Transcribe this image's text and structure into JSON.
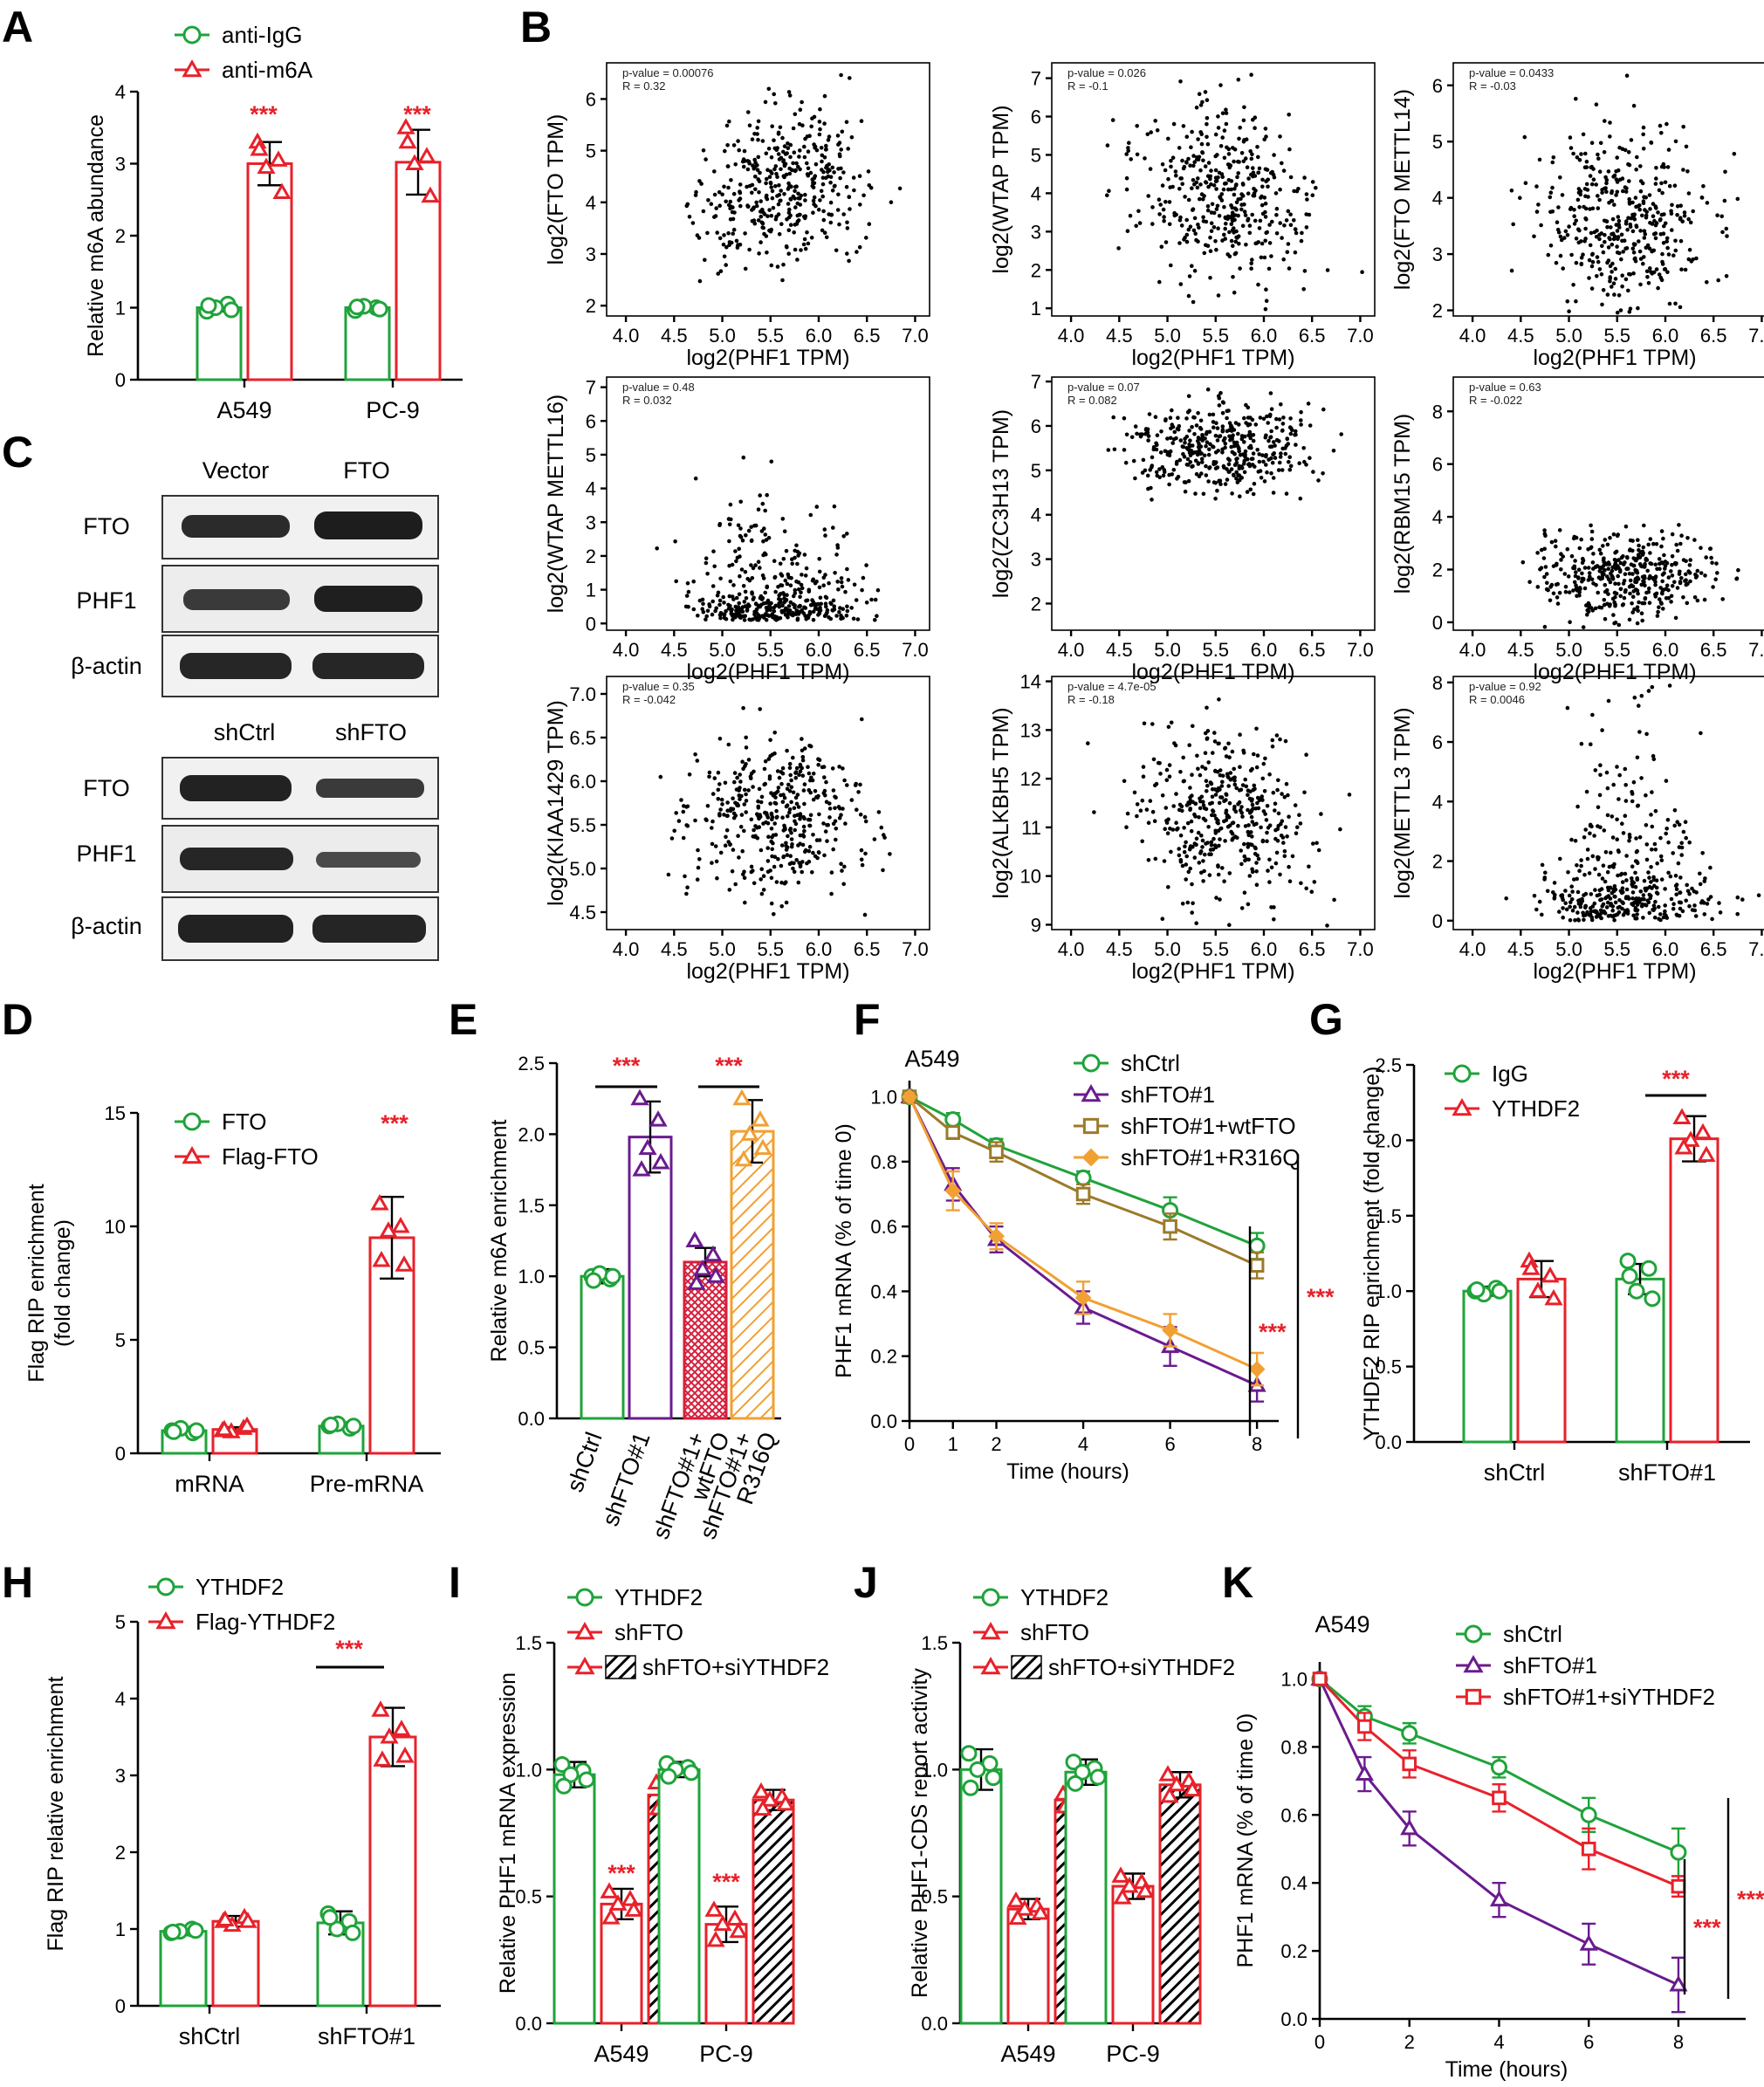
{
  "colors": {
    "green": "#1fa33a",
    "red": "#e8212a",
    "purple": "#6a1b8e",
    "olive": "#9b7a2a",
    "orange": "#f1a033",
    "black": "#000000"
  },
  "panels": {
    "A": {
      "letter": "A"
    },
    "B": {
      "letter": "B"
    },
    "C": {
      "letter": "C"
    },
    "D": {
      "letter": "D"
    },
    "E": {
      "letter": "E"
    },
    "F": {
      "letter": "F"
    },
    "G": {
      "letter": "G"
    },
    "H": {
      "letter": "H"
    },
    "I": {
      "letter": "I"
    },
    "J": {
      "letter": "J"
    },
    "K": {
      "letter": "K"
    }
  },
  "blots": {
    "top": {
      "columns": [
        "Vector",
        "FTO"
      ],
      "rows": [
        "FTO",
        "PHF1",
        "β-actin"
      ]
    },
    "bottom": {
      "columns": [
        "shCtrl",
        "shFTO"
      ],
      "rows": [
        "FTO",
        "PHF1",
        "β-actin"
      ]
    }
  },
  "chart_data": [
    {
      "id": "A",
      "type": "bar",
      "categories": [
        "A549",
        "PC-9"
      ],
      "series": [
        {
          "name": "anti-IgG",
          "color": "green",
          "marker": "circle",
          "values": [
            1.0,
            1.0
          ],
          "error": [
            0.05,
            0.05
          ],
          "points": [
            [
              0.95,
              1.05,
              1.0,
              0.97,
              1.03
            ],
            [
              0.96,
              1.0,
              1.02,
              0.98,
              1.01
            ]
          ]
        },
        {
          "name": "anti-m6A",
          "color": "red",
          "marker": "triangle",
          "values": [
            3.0,
            3.02
          ],
          "error": [
            0.3,
            0.45
          ],
          "points": [
            [
              3.3,
              3.05,
              2.95,
              2.6,
              3.2
            ],
            [
              3.5,
              3.1,
              3.0,
              2.55,
              3.3
            ]
          ]
        }
      ],
      "ylabel": "Relative m6A abundance",
      "ylim": [
        0,
        4
      ],
      "yticks": [
        0,
        1,
        2,
        3,
        4
      ],
      "annotations": [
        "***",
        "***"
      ]
    },
    {
      "id": "B",
      "type": "scatter",
      "xlabel": "log2(PHF1 TPM)",
      "xticks": [
        4.0,
        4.5,
        5.0,
        5.5,
        6.0,
        6.5,
        7.0
      ],
      "plots": [
        {
          "ylabel": "log2(FTO TPM)",
          "p": "p-value = 0.00076",
          "r": "R = 0.32",
          "yticks": [
            2,
            3,
            4,
            5,
            6
          ],
          "ylim": [
            1.8,
            6.7
          ],
          "ymean": 4.3,
          "ysd": 0.75,
          "corr": 0.32
        },
        {
          "ylabel": "log2(WTAP TPM)",
          "p": "p-value = 0.026",
          "r": "R = -0.1",
          "yticks": [
            1,
            2,
            3,
            4,
            5,
            6,
            7
          ],
          "ylim": [
            0.8,
            7.4
          ],
          "ymean": 4.0,
          "ysd": 1.2,
          "corr": -0.1
        },
        {
          "ylabel": "log2(FTO METTL14)",
          "p": "p-value = 0.0433",
          "r": "R = -0.03",
          "yticks": [
            2,
            3,
            4,
            5,
            6
          ],
          "ylim": [
            1.9,
            6.4
          ],
          "ymean": 3.6,
          "ysd": 0.8,
          "corr": -0.03
        },
        {
          "ylabel": "log2(WTAP METTL16)",
          "p": "p-value = 0.48",
          "r": "R = 0.032",
          "yticks": [
            0,
            1,
            2,
            3,
            4,
            5,
            6,
            7
          ],
          "ylim": [
            -0.2,
            7.3
          ],
          "ymean": 0.6,
          "ysd": 0.9,
          "corr": 0.03,
          "skew": true
        },
        {
          "ylabel": "log2(ZC3H13 TPM)",
          "p": "p-value = 0.07",
          "r": "R = 0.082",
          "yticks": [
            2,
            3,
            4,
            5,
            6,
            7
          ],
          "ylim": [
            1.4,
            7.1
          ],
          "ymean": 5.5,
          "ysd": 0.5,
          "corr": 0.08
        },
        {
          "ylabel": "log2(RBM15 TPM)",
          "p": "p-value = 0.63",
          "r": "R = -0.022",
          "yticks": [
            0,
            2,
            4,
            6,
            8
          ],
          "ylim": [
            -0.3,
            9.3
          ],
          "ymean": 1.8,
          "ysd": 0.9,
          "corr": -0.02
        },
        {
          "ylabel": "log2(KIAA1429 TPM)",
          "p": "p-value = 0.35",
          "r": "R = -0.042",
          "yticks": [
            4.5,
            5.0,
            5.5,
            6.0,
            6.5,
            7.0
          ],
          "ylim": [
            4.3,
            7.2
          ],
          "ymean": 5.6,
          "ysd": 0.45,
          "corr": -0.04
        },
        {
          "ylabel": "log2(ALKBH5 TPM)",
          "p": "p-value = 4.7e-05",
          "r": "R = -0.18",
          "yticks": [
            9,
            10,
            11,
            12,
            13,
            14
          ],
          "ylim": [
            8.9,
            14.1
          ],
          "ymean": 11.3,
          "ysd": 0.9,
          "corr": -0.18
        },
        {
          "ylabel": "log2(METTL3 TPM)",
          "p": "p-value = 0.92",
          "r": "R = 0.0046",
          "yticks": [
            0,
            2,
            4,
            6,
            8
          ],
          "ylim": [
            -0.3,
            8.2
          ],
          "ymean": 2.8,
          "ysd": 1.8,
          "corr": 0.0,
          "skew": true
        }
      ]
    },
    {
      "id": "D",
      "type": "bar",
      "categories": [
        "mRNA",
        "Pre-mRNA"
      ],
      "series": [
        {
          "name": "FTO",
          "color": "green",
          "marker": "circle",
          "values": [
            1.0,
            1.2
          ],
          "error": [
            0.1,
            0.15
          ],
          "points": [
            [
              1.0,
              0.9,
              1.1,
              1.0,
              0.95
            ],
            [
              1.2,
              1.1,
              1.3,
              1.2,
              1.25
            ]
          ]
        },
        {
          "name": "Flag-FTO",
          "color": "red",
          "marker": "triangle",
          "values": [
            1.05,
            9.5
          ],
          "error": [
            0.1,
            1.8
          ],
          "points": [
            [
              1.0,
              1.1,
              0.95,
              1.2,
              1.05
            ],
            [
              11.0,
              10.0,
              9.8,
              8.3,
              8.5
            ]
          ]
        }
      ],
      "ylabel": "Flag RIP enrichment\n(fold change)",
      "ylim": [
        0,
        15
      ],
      "yticks": [
        0,
        5,
        10,
        15
      ],
      "annotations": [
        "",
        "***"
      ]
    },
    {
      "id": "E",
      "type": "bar",
      "categories": [
        "shCtrl",
        "shFTO#1",
        "shFTO#1+\nwtFTO",
        "shFTO#1+\nR316Q"
      ],
      "values": [
        1.0,
        1.98,
        1.1,
        2.02
      ],
      "error": [
        0.05,
        0.25,
        0.1,
        0.22
      ],
      "colors": [
        "green",
        "purple",
        "red",
        "orange"
      ],
      "markers": [
        "circle",
        "triangle",
        "triangle",
        "triangle"
      ],
      "points": [
        [
          1.0,
          0.98,
          1.02,
          1.0,
          0.97
        ],
        [
          2.25,
          2.1,
          1.9,
          1.8,
          1.75
        ],
        [
          1.25,
          1.15,
          1.05,
          1.0,
          0.95
        ],
        [
          2.25,
          2.1,
          2.0,
          1.9,
          1.82
        ]
      ],
      "ylabel": "Relative m6A enrichment",
      "ylim": [
        0,
        2.5
      ],
      "yticks": [
        0,
        0.5,
        1.0,
        1.5,
        2.0,
        2.5
      ],
      "brackets": [
        {
          "from": 0,
          "to": 1,
          "label": "***"
        },
        {
          "from": 2,
          "to": 3,
          "label": "***"
        }
      ]
    },
    {
      "id": "F",
      "type": "line",
      "title": "A549",
      "x": [
        0,
        1,
        2,
        4,
        6,
        8
      ],
      "series": [
        {
          "name": "shCtrl",
          "color": "green",
          "marker": "circle",
          "values": [
            1.0,
            0.93,
            0.85,
            0.75,
            0.65,
            0.54
          ],
          "error": [
            0,
            0.02,
            0.02,
            0.02,
            0.04,
            0.04
          ]
        },
        {
          "name": "shFTO#1",
          "color": "purple",
          "marker": "triangle",
          "values": [
            1.0,
            0.73,
            0.56,
            0.35,
            0.23,
            0.11
          ],
          "error": [
            0,
            0.05,
            0.04,
            0.05,
            0.06,
            0.05
          ]
        },
        {
          "name": "shFTO#1+wtFTO",
          "color": "olive",
          "marker": "square",
          "values": [
            1.0,
            0.89,
            0.83,
            0.7,
            0.6,
            0.48
          ],
          "error": [
            0,
            0.02,
            0.03,
            0.03,
            0.04,
            0.04
          ]
        },
        {
          "name": "shFTO#1+R316Q",
          "color": "orange",
          "marker": "diamond",
          "values": [
            1.0,
            0.71,
            0.57,
            0.38,
            0.28,
            0.16
          ],
          "error": [
            0,
            0.06,
            0.04,
            0.05,
            0.05,
            0.05
          ]
        }
      ],
      "xlabel": "Time (hours)",
      "ylabel": "PHF1 mRNA (% of time 0)",
      "xlim": [
        0,
        8.5
      ],
      "xticks": [
        0,
        1,
        2,
        4,
        6,
        8
      ],
      "ylim": [
        0,
        1.05
      ],
      "yticks": [
        0.0,
        0.2,
        0.4,
        0.6,
        0.8,
        1.0
      ],
      "annotations": [
        "***",
        "***"
      ]
    },
    {
      "id": "G",
      "type": "bar",
      "categories": [
        "shCtrl",
        "shFTO#1"
      ],
      "series": [
        {
          "name": "IgG",
          "color": "green",
          "marker": "circle",
          "values": [
            1.0,
            1.08
          ],
          "error": [
            0.03,
            0.1
          ],
          "points": [
            [
              1.0,
              1.02,
              0.98,
              1.0,
              1.01
            ],
            [
              1.2,
              1.15,
              1.0,
              0.95,
              1.1
            ]
          ]
        },
        {
          "name": "YTHDF2",
          "color": "red",
          "marker": "triangle",
          "values": [
            1.08,
            2.01
          ],
          "error": [
            0.12,
            0.15
          ],
          "points": [
            [
              1.2,
              1.1,
              1.0,
              0.95,
              1.15
            ],
            [
              2.15,
              2.05,
              2.0,
              1.9,
              1.95
            ]
          ]
        }
      ],
      "ylabel": "YTHDF2 RIP enrichment (fold change)",
      "ylim": [
        0,
        2.5
      ],
      "yticks": [
        0.0,
        0.5,
        1.0,
        1.5,
        2.0,
        2.5
      ],
      "brackets": [
        {
          "label": "***"
        }
      ]
    },
    {
      "id": "H",
      "type": "bar",
      "categories": [
        "shCtrl",
        "shFTO#1"
      ],
      "series": [
        {
          "name": "YTHDF2",
          "color": "green",
          "marker": "circle",
          "values": [
            0.97,
            1.08
          ],
          "error": [
            0.05,
            0.15
          ],
          "points": [
            [
              0.95,
              1.0,
              0.97,
              0.98,
              0.96
            ],
            [
              1.2,
              1.1,
              1.0,
              0.95,
              1.15
            ]
          ]
        },
        {
          "name": "Flag-YTHDF2",
          "color": "red",
          "marker": "triangle",
          "values": [
            1.1,
            3.5
          ],
          "error": [
            0.07,
            0.38
          ],
          "points": [
            [
              1.1,
              1.15,
              1.05,
              1.1,
              1.12
            ],
            [
              3.85,
              3.6,
              3.5,
              3.25,
              3.2
            ]
          ]
        }
      ],
      "ylabel": "Flag RIP relative enrichment",
      "ylim": [
        0,
        5
      ],
      "yticks": [
        0,
        1,
        2,
        3,
        4,
        5
      ],
      "brackets": [
        {
          "label": "***"
        }
      ]
    },
    {
      "id": "I",
      "type": "bar",
      "categories": [
        "A549",
        "PC-9"
      ],
      "series": [
        {
          "name": "YTHDF2",
          "color": "green",
          "marker": "circle",
          "values": [
            0.98,
            1.0
          ],
          "error": [
            0.05,
            0.03
          ]
        },
        {
          "name": "shFTO",
          "color": "red",
          "marker": "triangle",
          "values": [
            0.47,
            0.39
          ],
          "error": [
            0.06,
            0.07
          ]
        },
        {
          "name": "shFTO+siYTHDF2",
          "color": "red",
          "marker": "triangle",
          "hatch": true,
          "values": [
            0.9,
            0.88
          ],
          "error": [
            0.06,
            0.04
          ]
        }
      ],
      "ylabel": "Relative PHF1 mRNA expression",
      "ylim": [
        0,
        1.5
      ],
      "yticks": [
        0.0,
        0.5,
        1.0,
        1.5
      ],
      "annotations": [
        "***",
        "***"
      ]
    },
    {
      "id": "J",
      "type": "bar",
      "categories": [
        "A549",
        "PC-9"
      ],
      "series": [
        {
          "name": "YTHDF2",
          "color": "green",
          "marker": "circle",
          "values": [
            1.0,
            0.99
          ],
          "error": [
            0.08,
            0.05
          ]
        },
        {
          "name": "shFTO",
          "color": "red",
          "marker": "triangle",
          "values": [
            0.45,
            0.54
          ],
          "error": [
            0.04,
            0.05
          ]
        },
        {
          "name": "shFTO+siYTHDF2",
          "color": "red",
          "marker": "triangle",
          "hatch": true,
          "values": [
            0.88,
            0.94
          ],
          "error": [
            0.03,
            0.05
          ]
        }
      ],
      "ylabel": "Relative PHF1-CDS report activity",
      "ylim": [
        0,
        1.5
      ],
      "yticks": [
        0.0,
        0.5,
        1.0,
        1.5
      ]
    },
    {
      "id": "K",
      "type": "line",
      "title": "A549",
      "x": [
        0,
        1,
        2,
        4,
        6,
        8
      ],
      "series": [
        {
          "name": "shCtrl",
          "color": "green",
          "marker": "circle",
          "values": [
            1.0,
            0.89,
            0.84,
            0.74,
            0.6,
            0.49
          ],
          "error": [
            0,
            0.03,
            0.03,
            0.03,
            0.05,
            0.07
          ]
        },
        {
          "name": "shFTO#1",
          "color": "purple",
          "marker": "triangle",
          "values": [
            1.0,
            0.72,
            0.56,
            0.35,
            0.22,
            0.1
          ],
          "error": [
            0,
            0.05,
            0.05,
            0.05,
            0.06,
            0.08
          ]
        },
        {
          "name": "shFTO#1+siYTHDF2",
          "color": "red",
          "marker": "square",
          "values": [
            1.0,
            0.86,
            0.75,
            0.65,
            0.5,
            0.39
          ],
          "error": [
            0,
            0.04,
            0.04,
            0.04,
            0.06,
            0.03
          ]
        }
      ],
      "xlabel": "Time (hours)",
      "ylabel": "PHF1 mRNA (% of time 0)",
      "xlim": [
        0,
        9.5
      ],
      "xticks": [
        0,
        2,
        4,
        6,
        8
      ],
      "ylim": [
        0,
        1.05
      ],
      "yticks": [
        0.0,
        0.2,
        0.4,
        0.6,
        0.8,
        1.0
      ],
      "annotations": [
        "***",
        "***"
      ]
    }
  ]
}
